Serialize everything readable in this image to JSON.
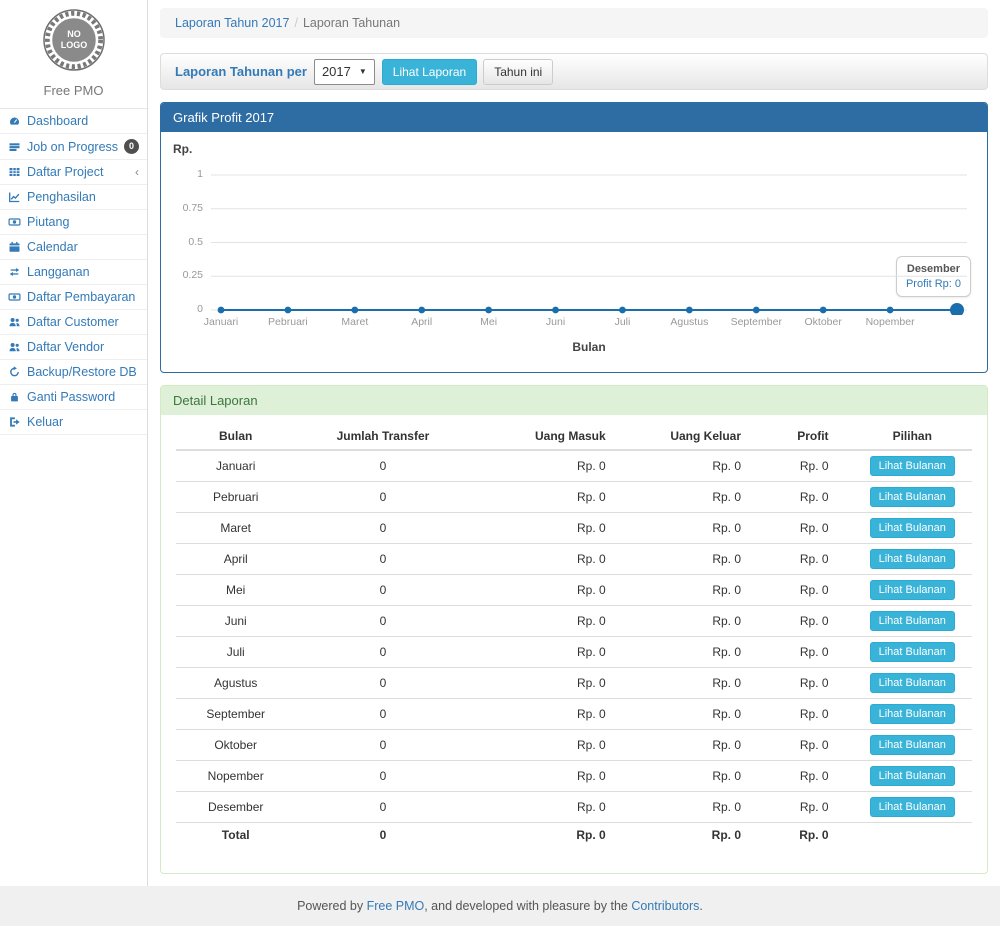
{
  "colors": {
    "link_blue": "#337ab7",
    "panel_primary_header": "#2e6da4",
    "panel_success_bg": "#dff0d8",
    "panel_success_text": "#3c763d",
    "info_button": "#39b3d7",
    "chart_line": "#1b6eac",
    "badge_bg": "#4f4f4f"
  },
  "sidebar": {
    "logo_line1": "NO",
    "logo_line2": "LOGO",
    "app_name": "Free PMO",
    "items": [
      {
        "label": "Dashboard",
        "icon": "dashboard-icon"
      },
      {
        "label": "Job on Progress",
        "icon": "tasks-icon",
        "badge": "0"
      },
      {
        "label": "Daftar Project",
        "icon": "table-icon",
        "chevron": "‹"
      },
      {
        "label": "Penghasilan",
        "icon": "chart-line-icon"
      },
      {
        "label": "Piutang",
        "icon": "money-icon"
      },
      {
        "label": "Calendar",
        "icon": "calendar-icon"
      },
      {
        "label": "Langganan",
        "icon": "retweet-icon"
      },
      {
        "label": "Daftar Pembayaran",
        "icon": "money-icon"
      },
      {
        "label": "Daftar Customer",
        "icon": "users-icon"
      },
      {
        "label": "Daftar Vendor",
        "icon": "users-icon"
      },
      {
        "label": "Backup/Restore DB",
        "icon": "refresh-icon"
      },
      {
        "label": "Ganti Password",
        "icon": "lock-icon"
      },
      {
        "label": "Keluar",
        "icon": "sign-out-icon"
      }
    ]
  },
  "breadcrumb": {
    "link": "Laporan Tahun 2017",
    "separator": "/",
    "current": "Laporan Tahunan"
  },
  "filter": {
    "label": "Laporan Tahunan per",
    "year_selected": "2017",
    "view_button": "Lihat Laporan",
    "current_year_button": "Tahun ini"
  },
  "chart_panel": {
    "title": "Grafik Profit 2017"
  },
  "chart_data": {
    "type": "line",
    "title": "Grafik Profit 2017",
    "xlabel": "Bulan",
    "ylabel": "Rp.",
    "categories": [
      "Januari",
      "Pebruari",
      "Maret",
      "April",
      "Mei",
      "Juni",
      "Juli",
      "Agustus",
      "September",
      "Oktober",
      "Nopember",
      "Desember"
    ],
    "series": [
      {
        "name": "Profit",
        "values": [
          0,
          0,
          0,
          0,
          0,
          0,
          0,
          0,
          0,
          0,
          0,
          0
        ]
      }
    ],
    "yticks": [
      0,
      0.25,
      0.5,
      0.75,
      1
    ],
    "ylim": [
      0,
      1
    ],
    "grid": true,
    "legend": "none",
    "hidden_x_label_indexes": [
      11
    ],
    "highlighted_point_index": 11,
    "tooltip": {
      "title": "Desember",
      "value_label": "Profit Rp: 0"
    }
  },
  "detail_panel": {
    "title": "Detail Laporan",
    "table": {
      "headers": [
        "Bulan",
        "Jumlah Transfer",
        "Uang Masuk",
        "Uang Keluar",
        "Profit",
        "Pilihan"
      ],
      "action_label": "Lihat Bulanan",
      "rows": [
        [
          "Januari",
          "0",
          "Rp. 0",
          "Rp. 0",
          "Rp. 0"
        ],
        [
          "Pebruari",
          "0",
          "Rp. 0",
          "Rp. 0",
          "Rp. 0"
        ],
        [
          "Maret",
          "0",
          "Rp. 0",
          "Rp. 0",
          "Rp. 0"
        ],
        [
          "April",
          "0",
          "Rp. 0",
          "Rp. 0",
          "Rp. 0"
        ],
        [
          "Mei",
          "0",
          "Rp. 0",
          "Rp. 0",
          "Rp. 0"
        ],
        [
          "Juni",
          "0",
          "Rp. 0",
          "Rp. 0",
          "Rp. 0"
        ],
        [
          "Juli",
          "0",
          "Rp. 0",
          "Rp. 0",
          "Rp. 0"
        ],
        [
          "Agustus",
          "0",
          "Rp. 0",
          "Rp. 0",
          "Rp. 0"
        ],
        [
          "September",
          "0",
          "Rp. 0",
          "Rp. 0",
          "Rp. 0"
        ],
        [
          "Oktober",
          "0",
          "Rp. 0",
          "Rp. 0",
          "Rp. 0"
        ],
        [
          "Nopember",
          "0",
          "Rp. 0",
          "Rp. 0",
          "Rp. 0"
        ],
        [
          "Desember",
          "0",
          "Rp. 0",
          "Rp. 0",
          "Rp. 0"
        ]
      ],
      "total_row": [
        "Total",
        "0",
        "Rp. 0",
        "Rp. 0",
        "Rp. 0"
      ]
    }
  },
  "footer": {
    "prefix": "Powered by ",
    "link1": "Free PMO",
    "middle": ", and developed with pleasure by the ",
    "link2": "Contributors",
    "suffix": "."
  }
}
